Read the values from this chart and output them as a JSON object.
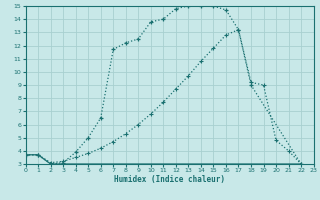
{
  "xlabel": "Humidex (Indice chaleur)",
  "xlim": [
    0,
    23
  ],
  "ylim": [
    3,
    15
  ],
  "yticks": [
    3,
    4,
    5,
    6,
    7,
    8,
    9,
    10,
    11,
    12,
    13,
    14,
    15
  ],
  "xticks": [
    0,
    1,
    2,
    3,
    4,
    5,
    6,
    7,
    8,
    9,
    10,
    11,
    12,
    13,
    14,
    15,
    16,
    17,
    18,
    19,
    20,
    21,
    22,
    23
  ],
  "background_color": "#c8e8e8",
  "line_color": "#1a7070",
  "grid_color": "#a8d0d0",
  "curve1_x": [
    0,
    1,
    2,
    3,
    4,
    5,
    6,
    7,
    8,
    9,
    10,
    11,
    12,
    13,
    14,
    15,
    16,
    17,
    18,
    22
  ],
  "curve1_y": [
    3.7,
    3.7,
    3.0,
    3.1,
    3.9,
    5.0,
    6.5,
    11.7,
    12.2,
    12.5,
    13.8,
    14.0,
    14.8,
    15.0,
    15.0,
    15.0,
    14.7,
    13.2,
    9.0,
    3.0
  ],
  "curve2_x": [
    0,
    1,
    2,
    3,
    4,
    5,
    6,
    7,
    8,
    9,
    10,
    11,
    12,
    13,
    14,
    15,
    16,
    17,
    18,
    19,
    20,
    21,
    22
  ],
  "curve2_y": [
    3.7,
    3.7,
    3.1,
    3.2,
    3.5,
    3.8,
    4.2,
    4.7,
    5.3,
    6.0,
    6.8,
    7.7,
    8.7,
    9.7,
    10.8,
    11.8,
    12.8,
    13.2,
    9.2,
    9.0,
    4.8,
    4.0,
    3.0
  ],
  "curve3_x": [
    0,
    1,
    2,
    3,
    4,
    5,
    6,
    7,
    8,
    9,
    10,
    11,
    12,
    13,
    14,
    15,
    16,
    17,
    18,
    19,
    20,
    21,
    22
  ],
  "curve3_y": [
    3.7,
    3.7,
    3.0,
    3.0,
    3.0,
    3.0,
    3.0,
    3.0,
    3.0,
    3.0,
    3.0,
    3.0,
    3.0,
    3.0,
    3.0,
    3.0,
    3.0,
    3.0,
    3.0,
    3.0,
    3.0,
    3.0,
    3.0
  ]
}
